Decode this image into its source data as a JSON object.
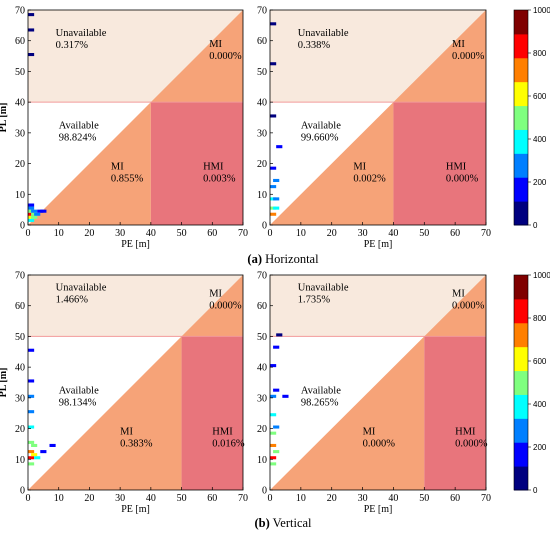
{
  "chart_data": [
    {
      "type": "heatmap",
      "group": "Horizontal",
      "xlabel": "PE [m]",
      "ylabel": "PL [m]",
      "xlim": [
        0,
        70
      ],
      "ylim": [
        0,
        70
      ],
      "xticks": [
        "0",
        "10",
        "20",
        "30",
        "40",
        "50",
        "60",
        "70"
      ],
      "yticks": [
        "0",
        "10",
        "20",
        "30",
        "40",
        "50",
        "60",
        "70"
      ],
      "alert_limit": 40,
      "regions": [
        {
          "name": "Unavailable",
          "value": "0.317%"
        },
        {
          "name": "MI",
          "value": "0.000%",
          "zone": "upper"
        },
        {
          "name": "Available",
          "value": "98.824%"
        },
        {
          "name": "MI",
          "value": "0.855%",
          "zone": "lower"
        },
        {
          "name": "HMI",
          "value": "0.003%"
        }
      ],
      "density_points": [
        [
          1,
          2,
          0.6
        ],
        [
          1,
          3,
          0.85
        ],
        [
          1,
          4,
          0.45
        ],
        [
          2,
          2,
          0.55
        ],
        [
          2,
          3,
          0.5
        ],
        [
          2,
          4,
          0.3
        ],
        [
          3,
          3,
          0.3
        ],
        [
          1,
          1,
          0.35
        ],
        [
          1,
          5,
          0.25
        ],
        [
          1,
          6,
          0.15
        ],
        [
          4,
          4,
          0.15
        ],
        [
          5,
          4,
          0.1
        ],
        [
          1,
          55,
          0.05
        ],
        [
          1,
          63,
          0.05
        ],
        [
          1,
          68,
          0.05
        ]
      ]
    },
    {
      "type": "heatmap",
      "group": "Horizontal",
      "xlabel": "PE [m]",
      "ylabel": "",
      "xlim": [
        0,
        70
      ],
      "ylim": [
        0,
        70
      ],
      "xticks": [
        "0",
        "10",
        "20",
        "30",
        "40",
        "50",
        "60",
        "70"
      ],
      "yticks": [
        "0",
        "10",
        "20",
        "30",
        "40",
        "50",
        "60",
        "70"
      ],
      "alert_limit": 40,
      "regions": [
        {
          "name": "Unavailable",
          "value": "0.338%"
        },
        {
          "name": "MI",
          "value": "0.000%",
          "zone": "upper"
        },
        {
          "name": "Available",
          "value": "99.660%"
        },
        {
          "name": "MI",
          "value": "0.002%",
          "zone": "lower"
        },
        {
          "name": "HMI",
          "value": "0.000%"
        }
      ],
      "density_points": [
        [
          1,
          3,
          0.7
        ],
        [
          1,
          5,
          0.55
        ],
        [
          2,
          5,
          0.35
        ],
        [
          1,
          8,
          0.35
        ],
        [
          2,
          8,
          0.3
        ],
        [
          1,
          12,
          0.25
        ],
        [
          2,
          14,
          0.2
        ],
        [
          1,
          18,
          0.15
        ],
        [
          3,
          25,
          0.1
        ],
        [
          1,
          35,
          0.05
        ],
        [
          1,
          52,
          0.05
        ],
        [
          1,
          65,
          0.05
        ]
      ]
    },
    {
      "type": "heatmap",
      "group": "Vertical",
      "xlabel": "PE [m]",
      "ylabel": "PL [m]",
      "xlim": [
        0,
        70
      ],
      "ylim": [
        0,
        70
      ],
      "xticks": [
        "0",
        "10",
        "20",
        "30",
        "40",
        "50",
        "60",
        "70"
      ],
      "yticks": [
        "0",
        "10",
        "20",
        "30",
        "40",
        "50",
        "60",
        "70"
      ],
      "alert_limit": 50,
      "regions": [
        {
          "name": "Unavailable",
          "value": "1.466%"
        },
        {
          "name": "MI",
          "value": "0.000%",
          "zone": "upper"
        },
        {
          "name": "Available",
          "value": "98.134%"
        },
        {
          "name": "MI",
          "value": "0.383%",
          "zone": "lower"
        },
        {
          "name": "HMI",
          "value": "0.016%"
        }
      ],
      "density_points": [
        [
          1,
          10,
          0.9
        ],
        [
          1,
          12,
          0.75
        ],
        [
          2,
          11,
          0.6
        ],
        [
          1,
          15,
          0.5
        ],
        [
          2,
          14,
          0.45
        ],
        [
          1,
          20,
          0.4
        ],
        [
          1,
          8,
          0.45
        ],
        [
          3,
          10,
          0.35
        ],
        [
          1,
          25,
          0.25
        ],
        [
          1,
          30,
          0.2
        ],
        [
          1,
          35,
          0.1
        ],
        [
          1,
          45,
          0.1
        ],
        [
          5,
          12,
          0.15
        ],
        [
          8,
          14,
          0.1
        ]
      ]
    },
    {
      "type": "heatmap",
      "group": "Vertical",
      "xlabel": "PE [m]",
      "ylabel": "",
      "xlim": [
        0,
        70
      ],
      "ylim": [
        0,
        70
      ],
      "xticks": [
        "0",
        "10",
        "20",
        "30",
        "40",
        "50",
        "60",
        "70"
      ],
      "yticks": [
        "0",
        "10",
        "20",
        "30",
        "40",
        "50",
        "60",
        "70"
      ],
      "alert_limit": 50,
      "regions": [
        {
          "name": "Unavailable",
          "value": "1.735%"
        },
        {
          "name": "MI",
          "value": "0.000%",
          "zone": "upper"
        },
        {
          "name": "Available",
          "value": "98.265%"
        },
        {
          "name": "MI",
          "value": "0.000%",
          "zone": "lower"
        },
        {
          "name": "HMI",
          "value": "0.000%"
        }
      ],
      "density_points": [
        [
          1,
          10,
          0.85
        ],
        [
          1,
          14,
          0.7
        ],
        [
          2,
          12,
          0.55
        ],
        [
          1,
          18,
          0.45
        ],
        [
          1,
          24,
          0.35
        ],
        [
          2,
          20,
          0.3
        ],
        [
          1,
          30,
          0.25
        ],
        [
          1,
          8,
          0.5
        ],
        [
          2,
          32,
          0.15
        ],
        [
          1,
          40,
          0.15
        ],
        [
          2,
          46,
          0.1
        ],
        [
          5,
          30,
          0.1
        ],
        [
          3,
          50,
          0.05
        ]
      ]
    }
  ],
  "colorbars": [
    {
      "group": "Horizontal",
      "range": [
        0,
        1000
      ],
      "ticks": [
        "1000",
        "800",
        "600",
        "400",
        "200",
        "0"
      ]
    },
    {
      "group": "Vertical",
      "range": [
        0,
        1000
      ],
      "ticks": [
        "1000",
        "800",
        "600",
        "400",
        "200",
        "0"
      ]
    }
  ],
  "captions": {
    "horizontal": {
      "letter": "(a)",
      "text": " Horizontal"
    },
    "vertical": {
      "letter": "(b)",
      "text": " Vertical"
    }
  },
  "colors": {
    "unavailable": "#f8e9dd",
    "mi": "#f6a378",
    "hmi": "#e8757c",
    "al_line": "#f29a9a",
    "available": "#ffffff"
  },
  "colormap": [
    "#00007f",
    "#0000ff",
    "#007fff",
    "#00ffff",
    "#7fff7f",
    "#ffff00",
    "#ff7f00",
    "#ff0000",
    "#7f0000"
  ]
}
